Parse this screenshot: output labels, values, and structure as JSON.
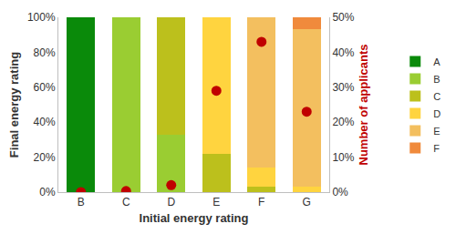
{
  "chart_data": {
    "type": "bar",
    "stacked": true,
    "grid": false,
    "legend": "right",
    "xlabel": "Initial energy rating",
    "ylabel": "Final energy rating",
    "y2label": "Number of applicants",
    "categories": [
      "B",
      "C",
      "D",
      "E",
      "F",
      "G"
    ],
    "ylim": [
      0,
      100
    ],
    "yticks": [
      {
        "value": 0,
        "label": "0%"
      },
      {
        "value": 20,
        "label": "20%"
      },
      {
        "value": 40,
        "label": "40%"
      },
      {
        "value": 60,
        "label": "60%"
      },
      {
        "value": 80,
        "label": "80%"
      },
      {
        "value": 100,
        "label": "100%"
      }
    ],
    "y2lim": [
      0,
      50
    ],
    "y2ticks": [
      {
        "value": 0,
        "label": "0%"
      },
      {
        "value": 10,
        "label": "10%"
      },
      {
        "value": 20,
        "label": "20%"
      },
      {
        "value": 30,
        "label": "30%"
      },
      {
        "value": 40,
        "label": "40%"
      },
      {
        "value": 50,
        "label": "50%"
      }
    ],
    "series": [
      {
        "name": "A",
        "color": "#0a8a0a",
        "values": [
          100,
          0,
          0,
          0,
          0,
          0
        ]
      },
      {
        "name": "B",
        "color": "#9acd32",
        "values": [
          0,
          100,
          33,
          0,
          0,
          0
        ]
      },
      {
        "name": "C",
        "color": "#bcc01c",
        "values": [
          0,
          0,
          67,
          22,
          3,
          0
        ]
      },
      {
        "name": "D",
        "color": "#ffd43f",
        "values": [
          0,
          0,
          0,
          78,
          11,
          3
        ]
      },
      {
        "name": "E",
        "color": "#f3bf5f",
        "values": [
          0,
          0,
          0,
          0,
          86,
          90
        ]
      },
      {
        "name": "F",
        "color": "#f08a3c",
        "values": [
          0,
          0,
          0,
          0,
          0,
          7
        ]
      },
      {
        "type": "scatter",
        "axis": "y2",
        "color": "#c00000",
        "marker": "circle",
        "values": [
          0,
          0.3,
          2,
          29,
          43,
          23
        ]
      }
    ]
  }
}
